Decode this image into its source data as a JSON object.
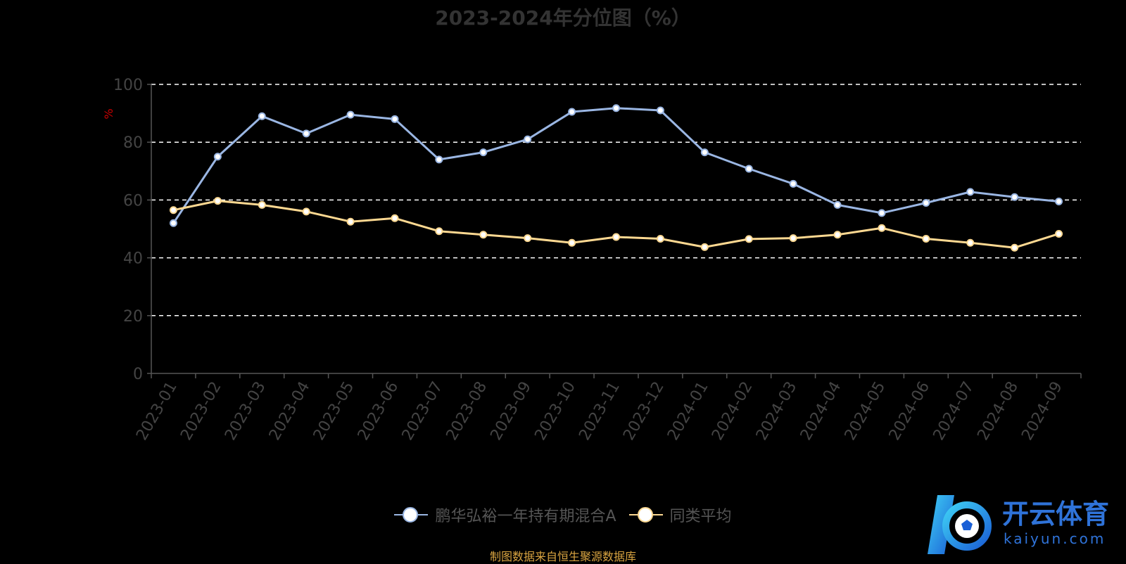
{
  "chart_data": {
    "type": "line",
    "title": "2023-2024年分位图（%）",
    "ylabel": "%",
    "xlabel": "",
    "ylim": [
      0,
      100
    ],
    "yticks": [
      0,
      20,
      40,
      60,
      80,
      100
    ],
    "grid": true,
    "legend_position": "bottom",
    "categories": [
      "2023-01",
      "2023-02",
      "2023-03",
      "2023-04",
      "2023-05",
      "2023-06",
      "2023-07",
      "2023-08",
      "2023-09",
      "2023-10",
      "2023-11",
      "2023-12",
      "2024-01",
      "2024-02",
      "2024-03",
      "2024-04",
      "2024-05",
      "2024-06",
      "2024-07",
      "2024-08",
      "2024-09"
    ],
    "series": [
      {
        "name": "鹏华弘裕一年持有期混合A",
        "color": "#9ab6e3",
        "values": [
          52.0,
          75.0,
          89.0,
          83.0,
          89.5,
          88.0,
          74.0,
          76.5,
          81.0,
          90.5,
          91.8,
          91.0,
          76.5,
          70.8,
          65.6,
          58.3,
          55.5,
          59.0,
          62.8,
          61.0,
          59.5
        ]
      },
      {
        "name": "同类平均",
        "color": "#fcd891",
        "values": [
          56.5,
          59.7,
          58.3,
          56.0,
          52.5,
          53.7,
          49.2,
          48.0,
          46.8,
          45.2,
          47.2,
          46.6,
          43.7,
          46.5,
          46.8,
          48.0,
          50.3,
          46.6,
          45.2,
          43.5,
          48.3
        ]
      }
    ]
  },
  "source_note": "制图数据来自恒生聚源数据库",
  "logo": {
    "text": "开云体育",
    "url": "kaiyun.com"
  }
}
